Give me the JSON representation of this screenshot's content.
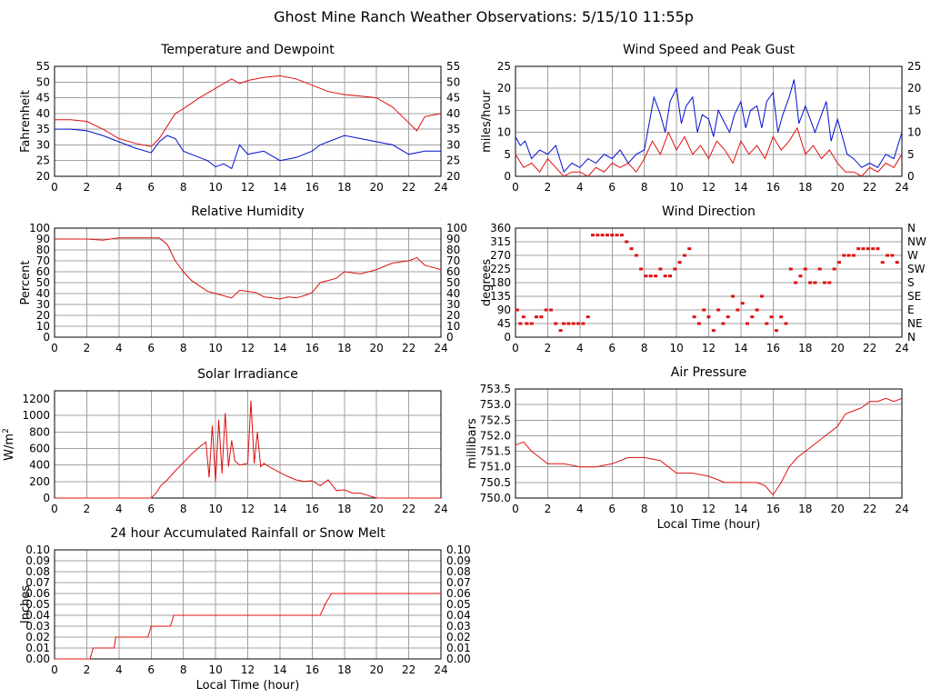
{
  "title": "Ghost Mine Ranch Weather Observations: 5/15/10 11:55p",
  "colors": {
    "red": "#e01010",
    "blue": "#0010d0",
    "grid": "#a0a0a0"
  },
  "chart_data": [
    {
      "id": "temp",
      "type": "line",
      "title": "Temperature and Dewpoint",
      "xlabel": "",
      "ylabel": "Fahrenheit",
      "right_axis": true,
      "xlim": [
        0,
        24
      ],
      "ylim": [
        20,
        55
      ],
      "xticks": [
        "0",
        "2",
        "4",
        "6",
        "8",
        "10",
        "12",
        "14",
        "16",
        "18",
        "20",
        "22",
        "24"
      ],
      "yticks": [
        "20",
        "25",
        "30",
        "35",
        "40",
        "45",
        "50",
        "55"
      ],
      "grid": true,
      "series": [
        {
          "color": "red",
          "x": [
            0,
            1,
            2,
            3,
            4,
            5,
            6,
            6.5,
            7,
            7.5,
            8,
            9,
            10,
            11,
            11.5,
            12,
            13,
            14,
            15,
            16,
            17,
            18,
            19,
            20,
            21,
            22,
            22.5,
            23,
            24
          ],
          "y": [
            38,
            38,
            37.5,
            35,
            32,
            30.5,
            29.5,
            32,
            36,
            40,
            41.5,
            45,
            48,
            51,
            49.5,
            50.5,
            51.5,
            52,
            51,
            49,
            47,
            46,
            45.5,
            45,
            42,
            37,
            34.5,
            39,
            40
          ]
        },
        {
          "color": "blue",
          "x": [
            0,
            1,
            2,
            3,
            4,
            5,
            6,
            6.5,
            7,
            7.5,
            8,
            9,
            9.5,
            10,
            10.5,
            11,
            11.5,
            12,
            13,
            14,
            15,
            16,
            16.5,
            17,
            18,
            19,
            20,
            21,
            22,
            23,
            24
          ],
          "y": [
            35,
            35,
            34.5,
            33,
            31,
            29,
            27.5,
            31,
            33,
            32,
            28,
            26,
            25,
            23,
            24,
            22.5,
            30,
            27,
            28,
            25,
            26,
            28,
            30,
            31,
            33,
            32,
            31,
            30,
            27,
            28,
            28
          ]
        }
      ]
    },
    {
      "id": "wind",
      "type": "line",
      "title": "Wind Speed and Peak Gust",
      "xlabel": "",
      "ylabel": "miles/hour",
      "right_axis": true,
      "xlim": [
        0,
        24
      ],
      "ylim": [
        0,
        25
      ],
      "xticks": [
        "0",
        "2",
        "4",
        "6",
        "8",
        "10",
        "12",
        "14",
        "16",
        "18",
        "20",
        "22",
        "24"
      ],
      "yticks": [
        "0",
        "5",
        "10",
        "15",
        "20",
        "25"
      ],
      "grid": true,
      "series": [
        {
          "color": "blue",
          "x": [
            0,
            0.3,
            0.6,
            1,
            1.5,
            2,
            2.5,
            3,
            3.5,
            4,
            4.5,
            5,
            5.5,
            6,
            6.5,
            7,
            7.5,
            8,
            8.3,
            8.6,
            9,
            9.3,
            9.6,
            10,
            10.3,
            10.6,
            11,
            11.3,
            11.6,
            12,
            12.3,
            12.6,
            13,
            13.3,
            13.6,
            14,
            14.3,
            14.6,
            15,
            15.3,
            15.6,
            16,
            16.3,
            16.6,
            17,
            17.3,
            17.6,
            18,
            18.3,
            18.6,
            19,
            19.3,
            19.6,
            20,
            20.3,
            20.6,
            21,
            21.5,
            22,
            22.5,
            23,
            23.5,
            24
          ],
          "y": [
            9,
            7,
            8,
            4,
            6,
            5,
            7,
            1,
            3,
            2,
            4,
            3,
            5,
            4,
            6,
            3,
            5,
            6,
            12,
            18,
            14,
            10,
            17,
            20,
            12,
            16,
            18,
            10,
            14,
            13,
            9,
            15,
            12,
            10,
            14,
            17,
            11,
            15,
            16,
            11,
            17,
            19,
            10,
            14,
            18,
            22,
            12,
            16,
            13,
            10,
            14,
            17,
            8,
            13,
            9,
            5,
            4,
            2,
            3,
            2,
            5,
            4,
            10
          ]
        },
        {
          "color": "red",
          "x": [
            0,
            0.5,
            1,
            1.5,
            2,
            2.5,
            3,
            3.5,
            4,
            4.5,
            5,
            5.5,
            6,
            6.5,
            7,
            7.5,
            8,
            8.5,
            9,
            9.5,
            10,
            10.5,
            11,
            11.5,
            12,
            12.5,
            13,
            13.5,
            14,
            14.5,
            15,
            15.5,
            16,
            16.5,
            17,
            17.5,
            18,
            18.5,
            19,
            19.5,
            20,
            20.5,
            21,
            21.5,
            22,
            22.5,
            23,
            23.5,
            24
          ],
          "y": [
            5,
            2,
            3,
            1,
            4,
            2,
            0,
            1,
            1,
            0,
            2,
            1,
            3,
            2,
            3,
            1,
            4,
            8,
            5,
            10,
            6,
            9,
            5,
            7,
            4,
            8,
            6,
            3,
            8,
            5,
            7,
            4,
            9,
            6,
            8,
            11,
            5,
            7,
            4,
            6,
            3,
            1,
            1,
            0,
            2,
            1,
            3,
            2,
            5
          ]
        }
      ]
    },
    {
      "id": "rh",
      "type": "line",
      "title": "Relative Humidity",
      "xlabel": "",
      "ylabel": "Percent",
      "right_axis": true,
      "xlim": [
        0,
        24
      ],
      "ylim": [
        0,
        100
      ],
      "xticks": [
        "0",
        "2",
        "4",
        "6",
        "8",
        "10",
        "12",
        "14",
        "16",
        "18",
        "20",
        "22",
        "24"
      ],
      "yticks": [
        "0",
        "10",
        "20",
        "30",
        "40",
        "50",
        "60",
        "70",
        "80",
        "90",
        "100"
      ],
      "grid": true,
      "series": [
        {
          "color": "red",
          "x": [
            0,
            1,
            2,
            3,
            4,
            5,
            6,
            6.5,
            7,
            7.5,
            8,
            8.5,
            9,
            9.5,
            10,
            10.5,
            11,
            11.5,
            12,
            12.5,
            13,
            13.5,
            14,
            14.5,
            15,
            15.5,
            16,
            16.5,
            17,
            17.5,
            18,
            19,
            20,
            21,
            22,
            22.5,
            23,
            23.5,
            24
          ],
          "y": [
            90,
            90,
            90,
            89,
            91,
            91,
            91,
            91,
            85,
            70,
            60,
            52,
            47,
            42,
            40,
            38,
            36,
            43,
            42,
            41,
            37,
            36,
            35,
            37,
            36,
            38,
            41,
            50,
            52,
            54,
            60,
            58,
            62,
            68,
            70,
            73,
            66,
            64,
            62
          ]
        }
      ]
    },
    {
      "id": "wdir",
      "type": "scatter",
      "title": "Wind Direction",
      "xlabel": "",
      "ylabel": "degrees",
      "right_axis": false,
      "xlim": [
        0,
        24
      ],
      "ylim": [
        0,
        360
      ],
      "xticks": [
        "0",
        "2",
        "4",
        "6",
        "8",
        "10",
        "12",
        "14",
        "16",
        "18",
        "20",
        "22",
        "24"
      ],
      "yticks": [
        "0",
        "45",
        "90",
        "135",
        "180",
        "225",
        "270",
        "315",
        "360"
      ],
      "right_labels": [
        "N",
        "NE",
        "E",
        "SE",
        "S",
        "SW",
        "W",
        "NW",
        "N"
      ],
      "grid": true,
      "series": [
        {
          "color": "red",
          "x": [
            0.1,
            0.3,
            0.5,
            0.7,
            1,
            1.3,
            1.6,
            1.9,
            2.2,
            2.5,
            2.8,
            3,
            3.3,
            3.6,
            3.9,
            4.2,
            4.5,
            4.8,
            5.1,
            5.4,
            5.7,
            6,
            6.3,
            6.6,
            6.9,
            7.2,
            7.5,
            7.8,
            8.1,
            8.4,
            8.7,
            9,
            9.3,
            9.6,
            9.9,
            10.2,
            10.5,
            10.8,
            11.1,
            11.4,
            11.7,
            12,
            12.3,
            12.6,
            12.9,
            13.2,
            13.5,
            13.8,
            14.1,
            14.4,
            14.7,
            15,
            15.3,
            15.6,
            15.9,
            16.2,
            16.5,
            16.8,
            17.1,
            17.4,
            17.7,
            18,
            18.3,
            18.6,
            18.9,
            19.2,
            19.5,
            19.8,
            20.1,
            20.4,
            20.7,
            21,
            21.3,
            21.6,
            21.9,
            22.2,
            22.5,
            22.8,
            23.1,
            23.4,
            23.7
          ],
          "y": [
            90,
            45,
            67,
            45,
            45,
            67,
            67,
            90,
            90,
            45,
            22,
            45,
            45,
            45,
            45,
            45,
            67,
            337,
            337,
            337,
            337,
            337,
            337,
            337,
            315,
            292,
            270,
            225,
            202,
            202,
            202,
            225,
            202,
            202,
            225,
            247,
            270,
            292,
            67,
            45,
            90,
            67,
            22,
            90,
            45,
            67,
            135,
            90,
            112,
            45,
            67,
            90,
            135,
            45,
            67,
            22,
            67,
            45,
            225,
            180,
            202,
            225,
            180,
            180,
            225,
            180,
            180,
            225,
            247,
            270,
            270,
            270,
            292,
            292,
            292,
            292,
            292,
            247,
            270,
            270,
            247
          ]
        }
      ]
    },
    {
      "id": "solar",
      "type": "line",
      "title": "Solar Irradiance",
      "xlabel": "",
      "ylabel": "W/m2",
      "right_axis": false,
      "xlim": [
        0,
        24
      ],
      "ylim": [
        0,
        1300
      ],
      "xticks": [
        "0",
        "2",
        "4",
        "6",
        "8",
        "10",
        "12",
        "14",
        "16",
        "18",
        "20",
        "22",
        "24"
      ],
      "yticks": [
        "0",
        "200",
        "400",
        "600",
        "800",
        "1000",
        "1200"
      ],
      "grid": true,
      "series": [
        {
          "color": "red",
          "x": [
            0,
            1,
            2,
            3,
            4,
            5,
            6,
            6.3,
            6.6,
            7,
            7.5,
            8,
            8.5,
            9,
            9.4,
            9.6,
            9.8,
            10,
            10.2,
            10.4,
            10.6,
            10.8,
            11,
            11.2,
            11.5,
            12,
            12.2,
            12.4,
            12.6,
            12.8,
            13,
            13.5,
            14,
            14.5,
            15,
            15.5,
            16,
            16.5,
            17,
            17.5,
            18,
            18.5,
            19,
            19.5,
            20,
            21,
            22,
            23,
            24
          ],
          "y": [
            0,
            0,
            0,
            0,
            0,
            0,
            0,
            60,
            150,
            220,
            330,
            430,
            530,
            620,
            680,
            250,
            880,
            200,
            950,
            300,
            1030,
            380,
            700,
            450,
            400,
            420,
            1180,
            420,
            800,
            380,
            420,
            360,
            310,
            260,
            220,
            200,
            210,
            150,
            220,
            90,
            100,
            60,
            60,
            30,
            0,
            0,
            0,
            0,
            0
          ]
        }
      ]
    },
    {
      "id": "pressure",
      "type": "line",
      "title": "Air Pressure",
      "xlabel": "Local Time (hour)",
      "ylabel": "millibars",
      "right_axis": false,
      "xlim": [
        0,
        24
      ],
      "ylim": [
        750.0,
        753.5
      ],
      "xticks": [
        "0",
        "2",
        "4",
        "6",
        "8",
        "10",
        "12",
        "14",
        "16",
        "18",
        "20",
        "22",
        "24"
      ],
      "yticks": [
        "750.0",
        "750.5",
        "751.0",
        "751.5",
        "752.0",
        "752.5",
        "753.0",
        "753.5"
      ],
      "grid": true,
      "series": [
        {
          "color": "red",
          "x": [
            0,
            0.5,
            1,
            1.5,
            2,
            3,
            4,
            5,
            6,
            7,
            8,
            9,
            10,
            11,
            12,
            13,
            14,
            15,
            15.5,
            16,
            16.5,
            17,
            17.5,
            18,
            19,
            20,
            20.5,
            21,
            21.5,
            22,
            22.5,
            23,
            23.5,
            24
          ],
          "y": [
            751.7,
            751.8,
            751.5,
            751.3,
            751.1,
            751.1,
            751.0,
            751.0,
            751.1,
            751.3,
            751.3,
            751.2,
            750.8,
            750.8,
            750.7,
            750.5,
            750.5,
            750.5,
            750.4,
            750.1,
            750.5,
            751.0,
            751.3,
            751.5,
            751.9,
            752.3,
            752.7,
            752.8,
            752.9,
            753.1,
            753.1,
            753.2,
            753.1,
            753.2
          ]
        }
      ]
    },
    {
      "id": "rain",
      "type": "line",
      "title": "24 hour Accumulated Rainfall or Snow Melt",
      "xlabel": "Local Time (hour)",
      "ylabel": "Inches",
      "right_axis": true,
      "xlim": [
        0,
        24
      ],
      "ylim": [
        0,
        0.1
      ],
      "xticks": [
        "0",
        "2",
        "4",
        "6",
        "8",
        "10",
        "12",
        "14",
        "16",
        "18",
        "20",
        "22",
        "24"
      ],
      "yticks": [
        "0.00",
        "0.01",
        "0.02",
        "0.03",
        "0.04",
        "0.05",
        "0.06",
        "0.07",
        "0.08",
        "0.09",
        "0.10"
      ],
      "grid": true,
      "series": [
        {
          "color": "red",
          "step": true,
          "x": [
            0,
            2.2,
            2.4,
            3.7,
            3.8,
            5.8,
            6.0,
            7.2,
            7.4,
            16.5,
            16.8,
            17.2,
            24
          ],
          "y": [
            0,
            0,
            0.01,
            0.01,
            0.02,
            0.02,
            0.03,
            0.03,
            0.04,
            0.04,
            0.05,
            0.06,
            0.06
          ]
        }
      ]
    }
  ]
}
